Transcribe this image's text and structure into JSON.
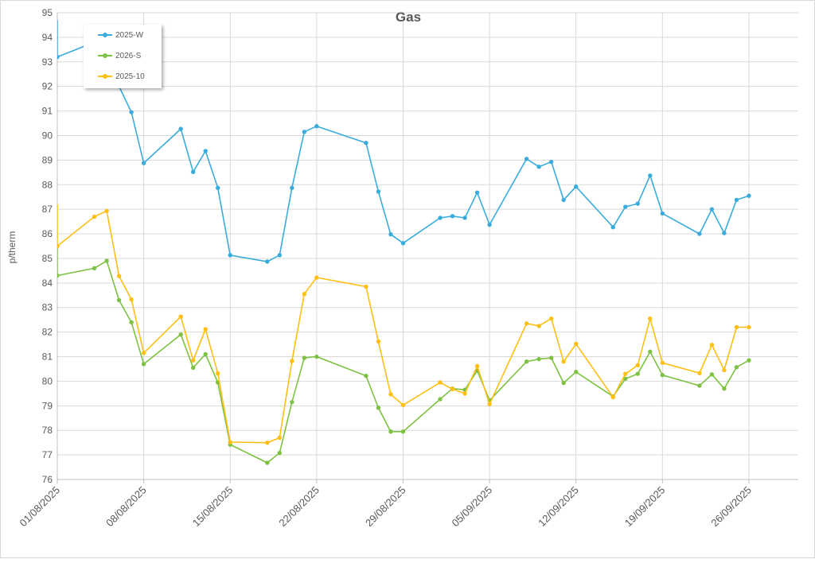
{
  "chart_data": {
    "type": "line",
    "title": "Gas",
    "ylabel": "p/therm",
    "xlabel": "",
    "ylim": [
      76,
      95
    ],
    "xlim": [
      "2025-08-01",
      "2025-09-30"
    ],
    "y_ticks": [
      76,
      77,
      78,
      79,
      80,
      81,
      82,
      83,
      84,
      85,
      86,
      87,
      88,
      89,
      90,
      91,
      92,
      93,
      94,
      95
    ],
    "x_ticks": [
      "01/08/2025",
      "08/08/2025",
      "15/08/2025",
      "22/08/2025",
      "29/08/2025",
      "05/09/2025",
      "12/09/2025",
      "19/09/2025",
      "26/09/2025"
    ],
    "x_tick_dates": [
      "2025-08-01",
      "2025-08-08",
      "2025-08-15",
      "2025-08-22",
      "2025-08-29",
      "2025-09-05",
      "2025-09-12",
      "2025-09-19",
      "2025-09-26"
    ],
    "grid": true,
    "legend_position": "top-left",
    "x": [
      "2025-08-01",
      "2025-08-04",
      "2025-08-05",
      "2025-08-06",
      "2025-08-07",
      "2025-08-08",
      "2025-08-11",
      "2025-08-12",
      "2025-08-13",
      "2025-08-14",
      "2025-08-15",
      "2025-08-18",
      "2025-08-19",
      "2025-08-20",
      "2025-08-21",
      "2025-08-22",
      "2025-08-26",
      "2025-08-27",
      "2025-08-28",
      "2025-08-29",
      "2025-09-01",
      "2025-09-02",
      "2025-09-03",
      "2025-09-04",
      "2025-09-05",
      "2025-09-08",
      "2025-09-09",
      "2025-09-10",
      "2025-09-11",
      "2025-09-12",
      "2025-09-15",
      "2025-09-16",
      "2025-09-17",
      "2025-09-18",
      "2025-09-19",
      "2025-09-22",
      "2025-09-23",
      "2025-09-24",
      "2025-09-25",
      "2025-09-26"
    ],
    "series": [
      {
        "name": "2025-W",
        "color": "#3aacdc",
        "values": [
          93.2,
          93.8,
          92.5,
          92.0,
          90.95,
          88.88,
          90.27,
          88.52,
          89.37,
          87.87,
          85.13,
          84.87,
          85.13,
          87.87,
          90.15,
          90.38,
          89.7,
          87.72,
          85.98,
          85.62,
          86.65,
          86.72,
          86.65,
          87.68,
          86.37,
          89.05,
          88.73,
          88.93,
          87.38,
          87.92,
          86.27,
          87.1,
          87.23,
          88.37,
          86.83,
          86.0,
          87.0,
          86.03,
          87.38,
          87.55
        ]
      },
      {
        "name": "2026-S",
        "color": "#7dc242",
        "values": [
          84.3,
          84.6,
          84.9,
          83.3,
          82.4,
          80.7,
          81.9,
          80.55,
          81.1,
          79.95,
          77.42,
          76.68,
          77.08,
          79.15,
          80.95,
          81.0,
          80.22,
          78.92,
          77.95,
          77.95,
          79.27,
          79.7,
          79.65,
          80.43,
          79.22,
          80.8,
          80.9,
          80.95,
          79.93,
          80.38,
          79.38,
          80.1,
          80.3,
          81.2,
          80.25,
          79.82,
          80.28,
          79.7,
          80.57,
          80.85
        ]
      },
      {
        "name": "2025-10",
        "color": "#fdbf14",
        "values": [
          85.5,
          86.7,
          86.93,
          84.28,
          83.33,
          81.15,
          82.63,
          80.85,
          82.12,
          80.32,
          77.52,
          77.5,
          77.7,
          80.82,
          83.55,
          84.22,
          83.85,
          81.62,
          79.47,
          79.03,
          79.95,
          79.68,
          79.5,
          80.62,
          79.07,
          82.35,
          82.25,
          82.55,
          80.8,
          81.52,
          79.35,
          80.3,
          80.65,
          82.55,
          80.75,
          80.33,
          81.48,
          80.45,
          82.2,
          82.2
        ]
      }
    ]
  }
}
